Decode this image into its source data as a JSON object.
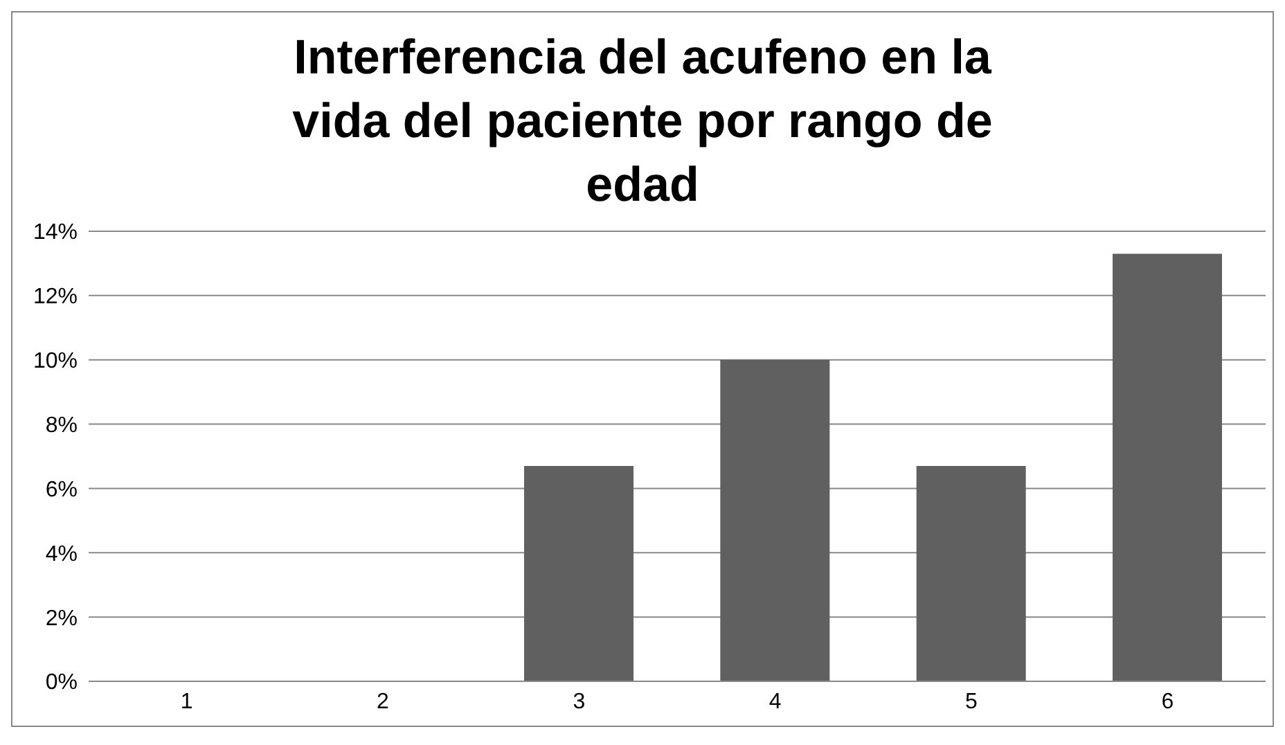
{
  "chart_data": {
    "type": "bar",
    "title": "Interferencia del acufeno en la vida del paciente por rango de edad",
    "categories": [
      "1",
      "2",
      "3",
      "4",
      "5",
      "6"
    ],
    "values": [
      0,
      0,
      6.7,
      10,
      6.7,
      13.3
    ],
    "color": "#606060",
    "ylim": [
      0,
      14
    ],
    "yticks": [
      {
        "value": 0,
        "label": "0%"
      },
      {
        "value": 2,
        "label": "2%"
      },
      {
        "value": 4,
        "label": "4%"
      },
      {
        "value": 6,
        "label": "6%"
      },
      {
        "value": 8,
        "label": "8%"
      },
      {
        "value": 10,
        "label": "10%"
      },
      {
        "value": 12,
        "label": "12%"
      },
      {
        "value": 14,
        "label": "14%"
      }
    ],
    "grid": "y",
    "legend": false
  }
}
